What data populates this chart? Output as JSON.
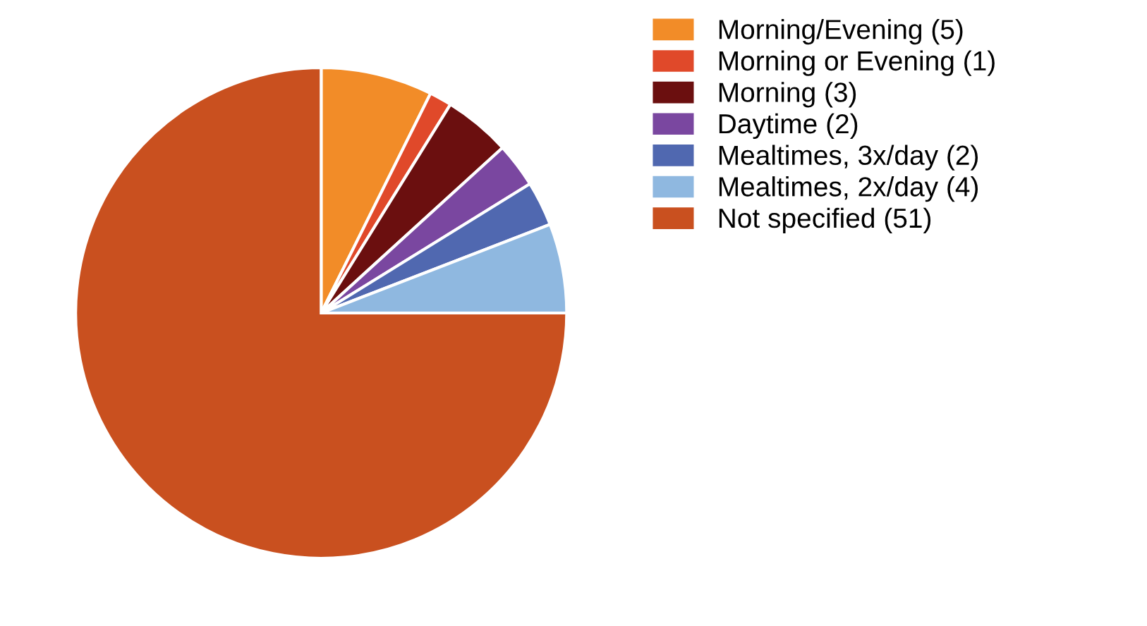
{
  "chart_data": {
    "type": "pie",
    "categories": [
      "Morning/Evening (5)",
      "Morning or Evening (1)",
      "Morning (3)",
      "Daytime (2)",
      "Mealtimes, 3x/day (2)",
      "Mealtimes, 2x/day (4)",
      "Not specified (51)"
    ],
    "values": [
      5,
      1,
      3,
      2,
      2,
      4,
      51
    ],
    "colors": [
      "#f28c28",
      "#e0492a",
      "#6b0f0f",
      "#7a47a0",
      "#5068b0",
      "#8fb8e0",
      "#c9501f"
    ],
    "legend": "right"
  }
}
